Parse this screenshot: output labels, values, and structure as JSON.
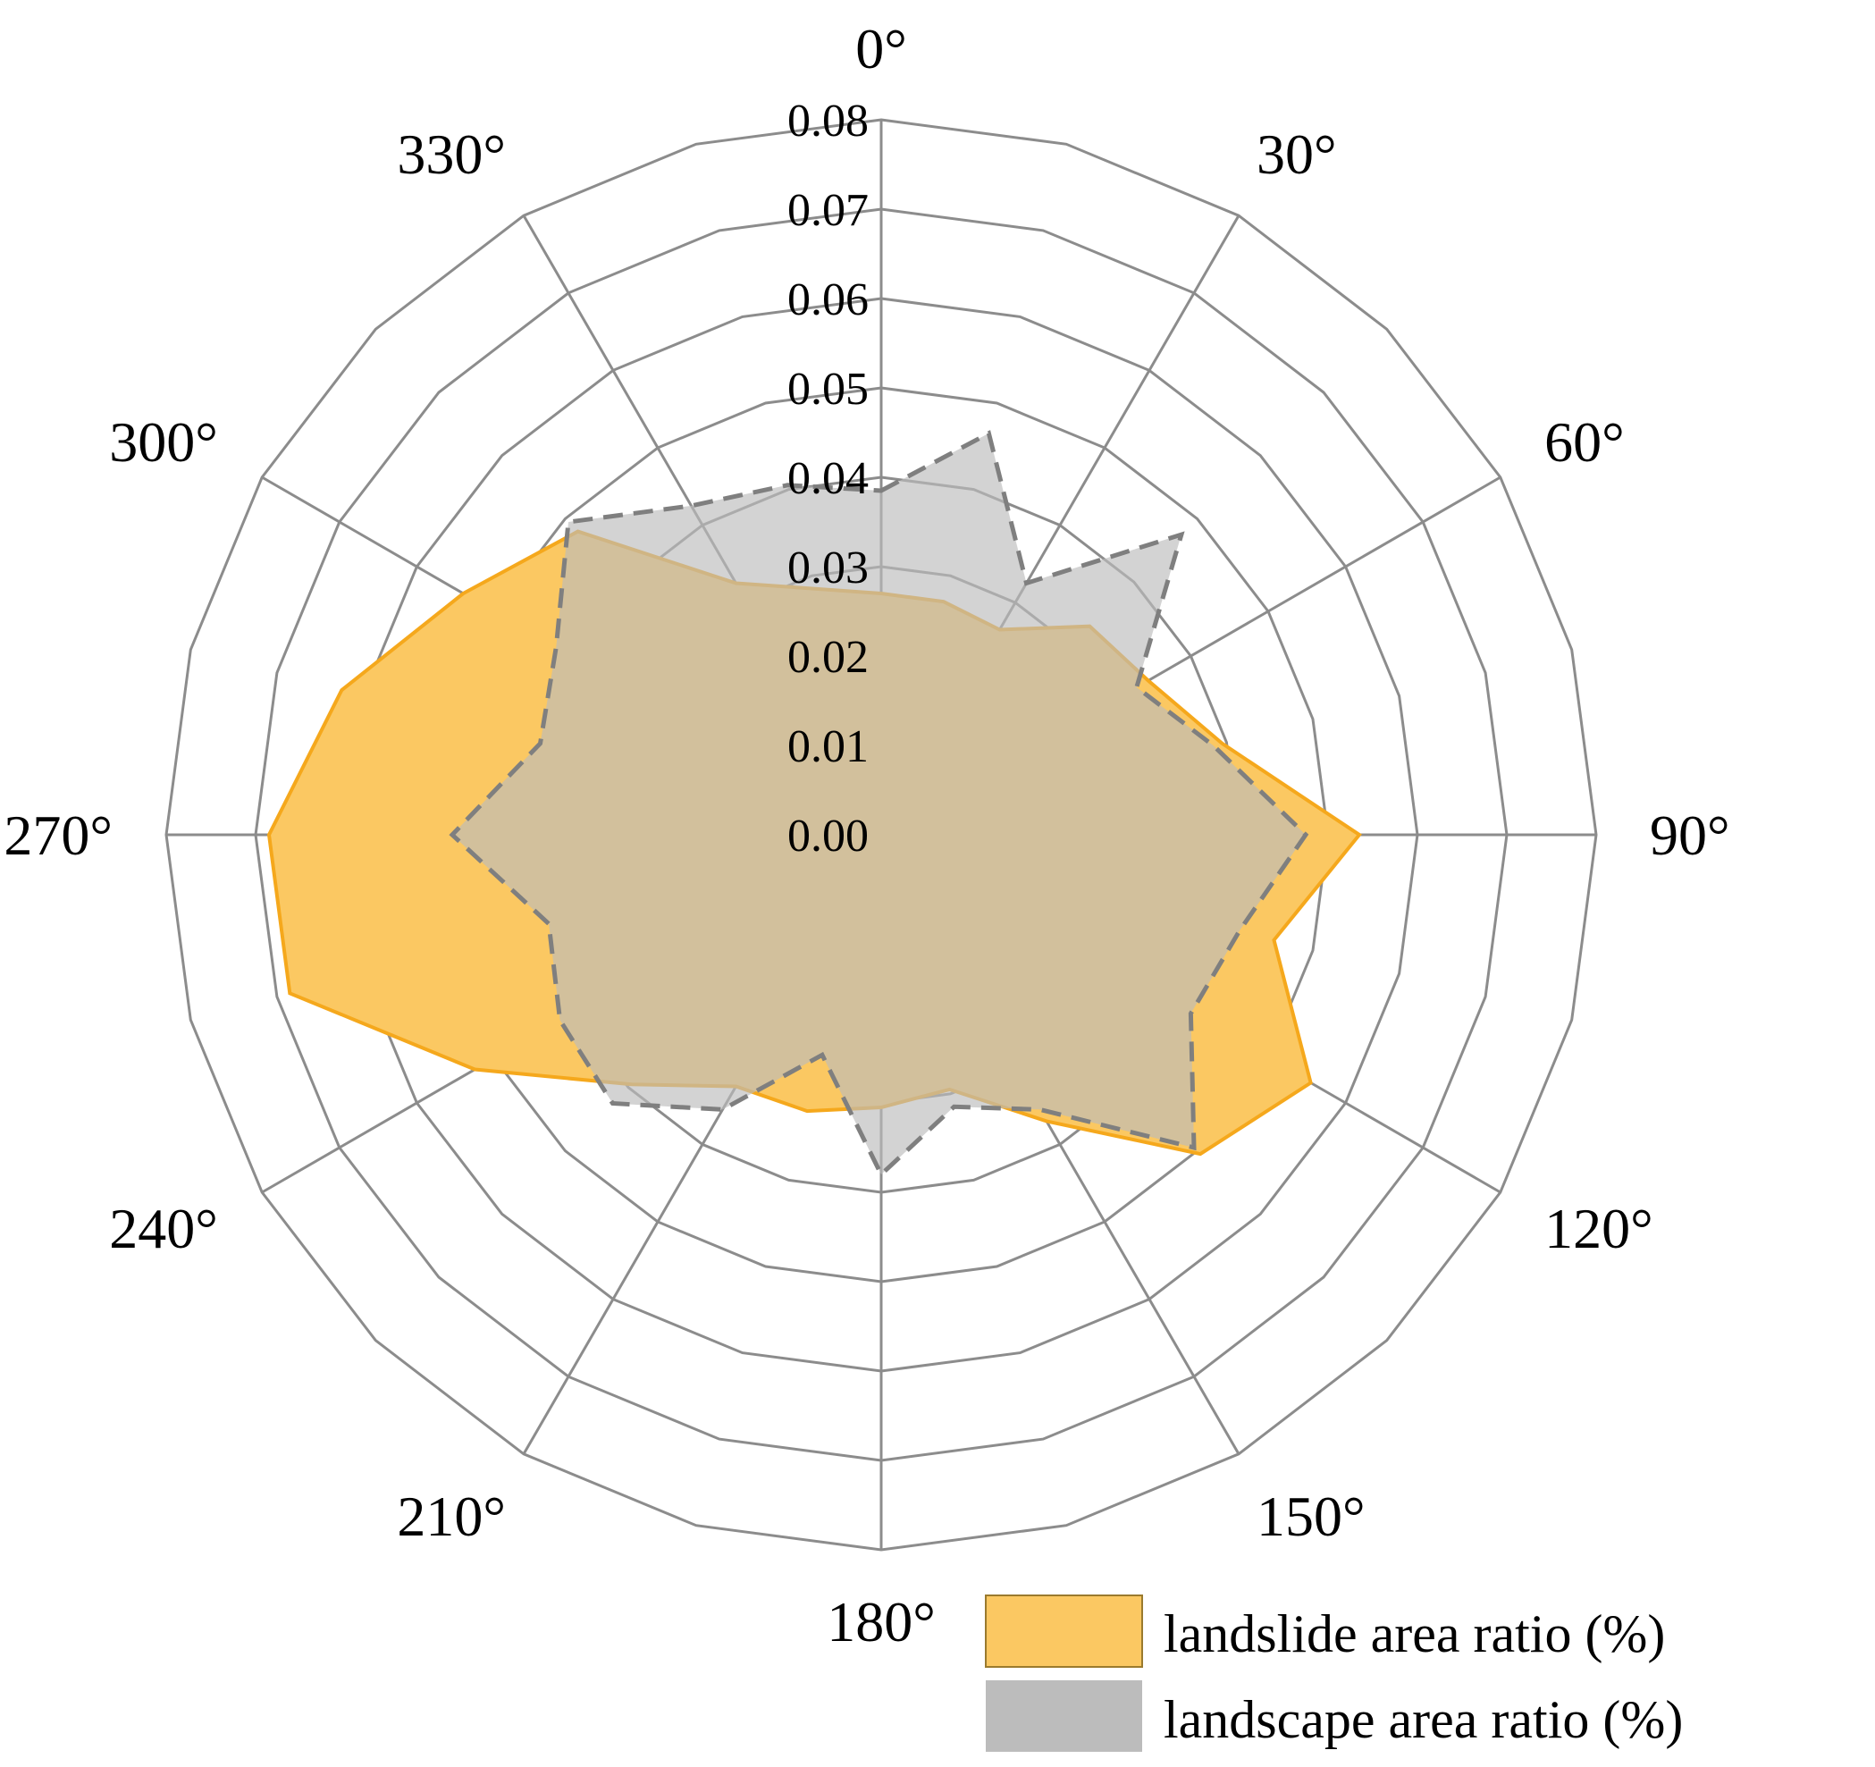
{
  "chart_data": {
    "type": "radar",
    "title": "",
    "theta_unit": "°",
    "theta_ticks": [
      "0°",
      "30°",
      "60°",
      "90°",
      "120°",
      "150°",
      "180°",
      "210°",
      "240°",
      "270°",
      "300°",
      "330°"
    ],
    "r_ticks": [
      "0.00",
      "0.01",
      "0.02",
      "0.03",
      "0.04",
      "0.05",
      "0.06",
      "0.07",
      "0.08"
    ],
    "rlim": [
      0,
      0.08
    ],
    "directions": [
      0,
      15,
      30,
      45,
      60,
      75,
      90,
      105,
      120,
      135,
      150,
      165,
      180,
      195,
      210,
      225,
      240,
      255,
      270,
      285,
      300,
      315,
      330,
      345
    ],
    "grid": true,
    "legend_position": "bottom-right",
    "series": [
      {
        "name": "landslide area ratio (%)",
        "fill": "#fbc862",
        "stroke": "#f5a81c",
        "line_style": "solid",
        "values": [
          0.027,
          0.027,
          0.0265,
          0.033,
          0.0345,
          0.0395,
          0.0535,
          0.0455,
          0.0555,
          0.0505,
          0.037,
          0.0295,
          0.0305,
          0.032,
          0.0325,
          0.0395,
          0.0525,
          0.0685,
          0.0685,
          0.0625,
          0.054,
          0.048,
          0.0325,
          0.0285
        ]
      },
      {
        "name": "landscape area ratio (%)",
        "fill": "#bcbcbc",
        "stroke": "#7f7f7f",
        "line_style": "dashed",
        "values": [
          0.0385,
          0.0465,
          0.0325,
          0.0475,
          0.033,
          0.0385,
          0.0475,
          0.0415,
          0.04,
          0.0495,
          0.0355,
          0.0315,
          0.038,
          0.0255,
          0.0355,
          0.0425,
          0.0415,
          0.0385,
          0.048,
          0.0395,
          0.042,
          0.0495,
          0.0425,
          0.0405
        ]
      }
    ]
  }
}
